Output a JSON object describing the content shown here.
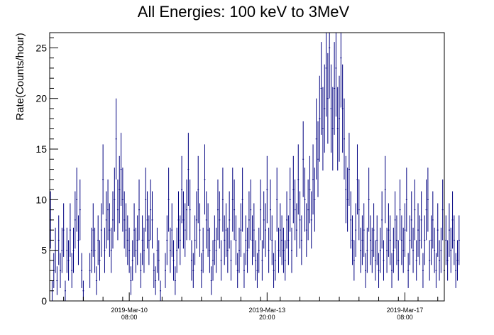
{
  "chart_data": {
    "type": "scatter",
    "title": "All Energies:  100 keV to 3MeV",
    "xlabel": "",
    "ylabel": "Rate(Counts/hour)",
    "ylim": [
      0,
      26.5
    ],
    "grid": false,
    "x_tick_labels": [
      {
        "date": "2019-Mar-10",
        "time": "08:00",
        "hours": 48.5
      },
      {
        "date": "2019-Mar-13",
        "time": "20:00",
        "hours": 132.5
      },
      {
        "date": "2019-Mar-17",
        "time": "08:00",
        "hours": 216.5
      }
    ],
    "x_range_hours": [
      0,
      240.5
    ],
    "y_ticks": [
      0,
      5,
      10,
      15,
      20,
      25
    ],
    "marker_color": "#000080",
    "series": [
      {
        "values": [
          8,
          1,
          3,
          5,
          2,
          6,
          3,
          5,
          7,
          1,
          5,
          4,
          7,
          3,
          5,
          8,
          10,
          6,
          9,
          3,
          1,
          0,
          0,
          0,
          3,
          5,
          7,
          5,
          2,
          6,
          4,
          7,
          12,
          5,
          8,
          9,
          7,
          5,
          8,
          10,
          16,
          9,
          11,
          13,
          10,
          8,
          7,
          6,
          5,
          2,
          4,
          7,
          5,
          6,
          9,
          3,
          6,
          5,
          10,
          8,
          6,
          9,
          8,
          3,
          2,
          5,
          4,
          1,
          0,
          0,
          3,
          6,
          10,
          5,
          7,
          4,
          2,
          5,
          8,
          6,
          11,
          8,
          7,
          9,
          13,
          9,
          4,
          3,
          6,
          8,
          11,
          7,
          3,
          5,
          12,
          8,
          7,
          5,
          2,
          4,
          6,
          5,
          9,
          8,
          4,
          10,
          6,
          7,
          5,
          8,
          4,
          10,
          9,
          6,
          3,
          5,
          7,
          10,
          3,
          6,
          5,
          8,
          9,
          6,
          7,
          4,
          3,
          5,
          9,
          4,
          8,
          7,
          11,
          5,
          9,
          6,
          3,
          4,
          10,
          5,
          7,
          6,
          5,
          4,
          8,
          6,
          10,
          5,
          11,
          9,
          7,
          12,
          8,
          6,
          14,
          10,
          7,
          9,
          11,
          8,
          12,
          10,
          16,
          14,
          18,
          21,
          17,
          19,
          23,
          20,
          25,
          19,
          17,
          21,
          23,
          17,
          18,
          24,
          19,
          16,
          11,
          10,
          13,
          8,
          6,
          4,
          7,
          12,
          9,
          5,
          6,
          7,
          3,
          5,
          10,
          6,
          5,
          7,
          4,
          6,
          3,
          5,
          8,
          4,
          11,
          5,
          7,
          6,
          3,
          5,
          8,
          6,
          4,
          9,
          6,
          5,
          7,
          10,
          3,
          6,
          8,
          5,
          9,
          4,
          7,
          6,
          8,
          3,
          6,
          9,
          10,
          4,
          6,
          8,
          5,
          3,
          7,
          4,
          5,
          9,
          3,
          6,
          4,
          7,
          5,
          8,
          6,
          3,
          4,
          6
        ]
      }
    ]
  }
}
